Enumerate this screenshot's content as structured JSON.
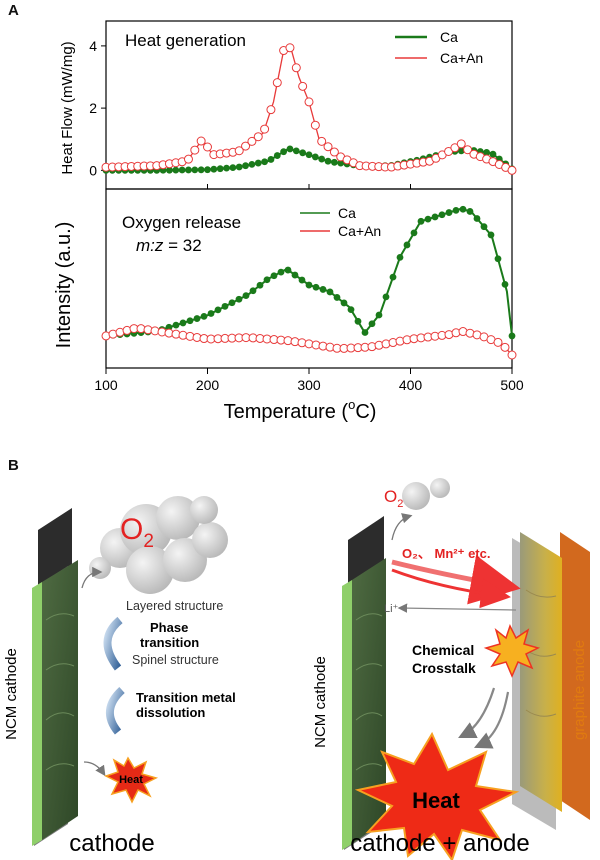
{
  "panel_a": {
    "letter": "A",
    "top_label": "Heat generation",
    "top_ylabel": "Heat Flow (mW/mg)",
    "bottom_label": "Oxygen release",
    "bottom_sublabel_italic": "m:z",
    "bottom_sublabel_rest": " = 32",
    "bottom_ylabel": "Intensity (a.u.)",
    "xlabel_main": "Temperature (",
    "xlabel_sup": "o",
    "xlabel_end": "C)",
    "legend_ca": "Ca",
    "legend_caan": "Ca+An"
  },
  "chart_data": [
    {
      "type": "line",
      "title": "Heat generation",
      "xlabel": "Temperature (°C)",
      "ylabel": "Heat Flow (mW/mg)",
      "xlim": [
        100,
        500
      ],
      "ylim": [
        -0.6,
        4.8
      ],
      "yticks": [
        0,
        2,
        4
      ],
      "series": [
        {
          "name": "Ca",
          "color": "#1a7a1a",
          "x": [
            100,
            150,
            200,
            230,
            260,
            280,
            300,
            320,
            350,
            380,
            410,
            440,
            460,
            480,
            500
          ],
          "values": [
            0.0,
            0.0,
            0.02,
            0.1,
            0.3,
            0.7,
            0.5,
            0.28,
            0.15,
            0.15,
            0.35,
            0.6,
            0.65,
            0.55,
            0.05
          ]
        },
        {
          "name": "Ca+An",
          "color": "#e83a3a",
          "x": [
            100,
            150,
            180,
            195,
            205,
            230,
            255,
            265,
            275,
            282,
            290,
            300,
            310,
            330,
            350,
            380,
            420,
            440,
            450,
            460,
            480,
            500
          ],
          "values": [
            0.1,
            0.15,
            0.3,
            1.0,
            0.5,
            0.6,
            1.2,
            2.2,
            3.85,
            3.95,
            3.0,
            2.2,
            1.0,
            0.45,
            0.15,
            0.1,
            0.3,
            0.65,
            0.85,
            0.55,
            0.3,
            0.0
          ]
        }
      ]
    },
    {
      "type": "line",
      "title": "Oxygen release",
      "xlabel": "Temperature (°C)",
      "ylabel": "Intensity (a.u.)",
      "xlim": [
        100,
        500
      ],
      "ylim": [
        0,
        1
      ],
      "series": [
        {
          "name": "Ca",
          "color": "#1a7a1a",
          "x": [
            100,
            150,
            200,
            240,
            260,
            278,
            300,
            320,
            340,
            355,
            370,
            390,
            410,
            430,
            450,
            460,
            480,
            495,
            500
          ],
          "values": [
            0.12,
            0.15,
            0.25,
            0.38,
            0.48,
            0.54,
            0.44,
            0.4,
            0.3,
            0.14,
            0.26,
            0.62,
            0.84,
            0.88,
            0.92,
            0.9,
            0.75,
            0.4,
            0.12
          ]
        },
        {
          "name": "Ca+An",
          "color": "#e83a3a",
          "x": [
            100,
            130,
            160,
            200,
            240,
            280,
            300,
            330,
            360,
            400,
            440,
            450,
            470,
            490,
            500
          ],
          "values": [
            0.12,
            0.17,
            0.14,
            0.1,
            0.11,
            0.09,
            0.07,
            0.04,
            0.05,
            0.1,
            0.13,
            0.15,
            0.12,
            0.07,
            0.0
          ]
        }
      ]
    }
  ],
  "panel_b": {
    "letter": "B",
    "left": {
      "o2": "O",
      "o2_sub": "2",
      "electrode": "NCM cathode",
      "layered": "Layered structure",
      "phase1": "Phase",
      "phase2": "transition",
      "spinel": "Spinel structure",
      "tm1": "Transition metal",
      "tm2": "dissolution",
      "heat": "Heat",
      "caption": "cathode"
    },
    "right": {
      "o2": "O",
      "o2_sub": "2",
      "arrow_text": "O₂、 Mn²⁺ etc.",
      "li": "Li⁺",
      "electrode_left": "NCM cathode",
      "electrode_right": "graphite anode",
      "crosstalk1": "Chemical",
      "crosstalk2": "Crosstalk",
      "heat": "Heat",
      "caption": "cathode + anode"
    }
  }
}
